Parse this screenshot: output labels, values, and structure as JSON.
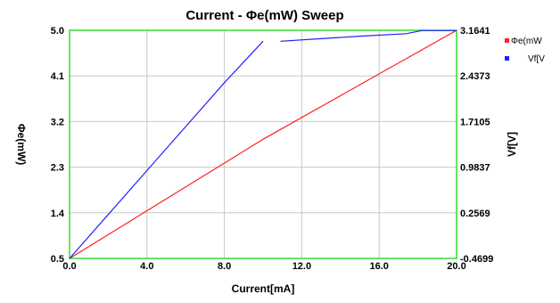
{
  "chart_data": {
    "type": "line",
    "title": "Current - Φe(mW) Sweep",
    "xlabel": "Current[mA]",
    "ylabel_left": "Φe(mW)",
    "ylabel_right": "Vf[V]",
    "xlim": [
      0.0,
      20.0
    ],
    "ylim_left": [
      0.5,
      5.0
    ],
    "ylim_right": [
      -0.4699,
      3.1641
    ],
    "x_ticks": [
      "0.0",
      "4.0",
      "8.0",
      "12.0",
      "16.0",
      "20.0"
    ],
    "y_left_ticks": [
      "0.5",
      "1.4",
      "2.3",
      "3.2",
      "4.1",
      "5.0"
    ],
    "y_right_ticks": [
      "-0.4699",
      "0.2569",
      "0.9837",
      "1.7105",
      "2.4373",
      "3.1641"
    ],
    "grid": true,
    "legend_position": "right",
    "series": [
      {
        "name": "Φe(mW)",
        "axis": "left",
        "color": "#ff2020",
        "x": [
          0.0,
          2.0,
          4.0,
          6.0,
          8.0,
          10.0,
          12.0,
          14.0,
          16.0,
          18.0,
          20.0
        ],
        "y": [
          0.5,
          0.97,
          1.44,
          1.91,
          2.38,
          2.85,
          3.28,
          3.71,
          4.14,
          4.57,
          5.0
        ]
      },
      {
        "name": "Vf[V]",
        "axis": "right",
        "color": "#2020ff",
        "x": [
          0.0,
          2.0,
          4.0,
          6.0,
          8.0,
          10.0,
          10.1,
          10.9,
          13.0,
          15.0,
          17.4,
          18.2,
          20.0
        ],
        "y": [
          -0.4699,
          0.23,
          0.93,
          1.63,
          2.33,
          2.99,
          null,
          2.99,
          3.03,
          3.07,
          3.11,
          3.16,
          3.16
        ]
      }
    ]
  },
  "legend": {
    "entries": [
      "Φe(mW",
      "Vf[V"
    ]
  }
}
